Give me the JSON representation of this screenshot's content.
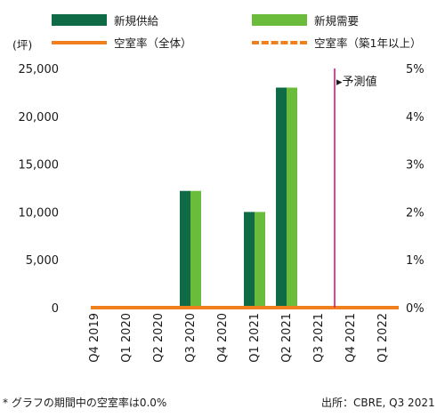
{
  "legend": {
    "new_supply": "新規供給",
    "new_demand": "新規需要",
    "vacancy": "空室率（全体）",
    "vacancy_new": "空室率（築1年以上）"
  },
  "unit_label": "(坪)",
  "forecast_label": "▸予測値",
  "footnote": "* グラフの期間中の空室率は0.0%",
  "source": "出所：CBRE, Q3 2021",
  "colors": {
    "new_supply": "#0f6b45",
    "new_demand": "#6cbc3b",
    "vacancy": "#f0801e",
    "forecast_line": "#d6177a"
  },
  "chart_data": {
    "type": "bar",
    "categories": [
      "Q4 2019",
      "Q1 2020",
      "Q2 2020",
      "Q3 2020",
      "Q4 2020",
      "Q1 2021",
      "Q2 2021",
      "Q3 2021",
      "Q4 2021",
      "Q1 2022"
    ],
    "series": [
      {
        "name": "新規供給",
        "values": [
          0,
          0,
          0,
          12200,
          0,
          10000,
          23000,
          0,
          0,
          0
        ]
      },
      {
        "name": "新規需要",
        "values": [
          0,
          0,
          0,
          12200,
          0,
          10000,
          23000,
          0,
          0,
          0
        ]
      }
    ],
    "lines": [
      {
        "name": "空室率（全体）",
        "axis": "right",
        "values": [
          0,
          0,
          0,
          0,
          0,
          0,
          0,
          0,
          0,
          0
        ]
      },
      {
        "name": "空室率（築1年以上）",
        "axis": "right",
        "values": [
          0,
          0,
          0,
          0,
          0,
          0,
          0,
          0,
          0,
          0
        ]
      }
    ],
    "ylim": [
      0,
      25000
    ],
    "yticks": [
      "0",
      "5,000",
      "10,000",
      "15,000",
      "20,000",
      "25,000"
    ],
    "y2lim": [
      0,
      5
    ],
    "y2ticks": [
      "0%",
      "1%",
      "2%",
      "3%",
      "4%",
      "5%"
    ],
    "forecast_start_after": "Q3 2021"
  }
}
